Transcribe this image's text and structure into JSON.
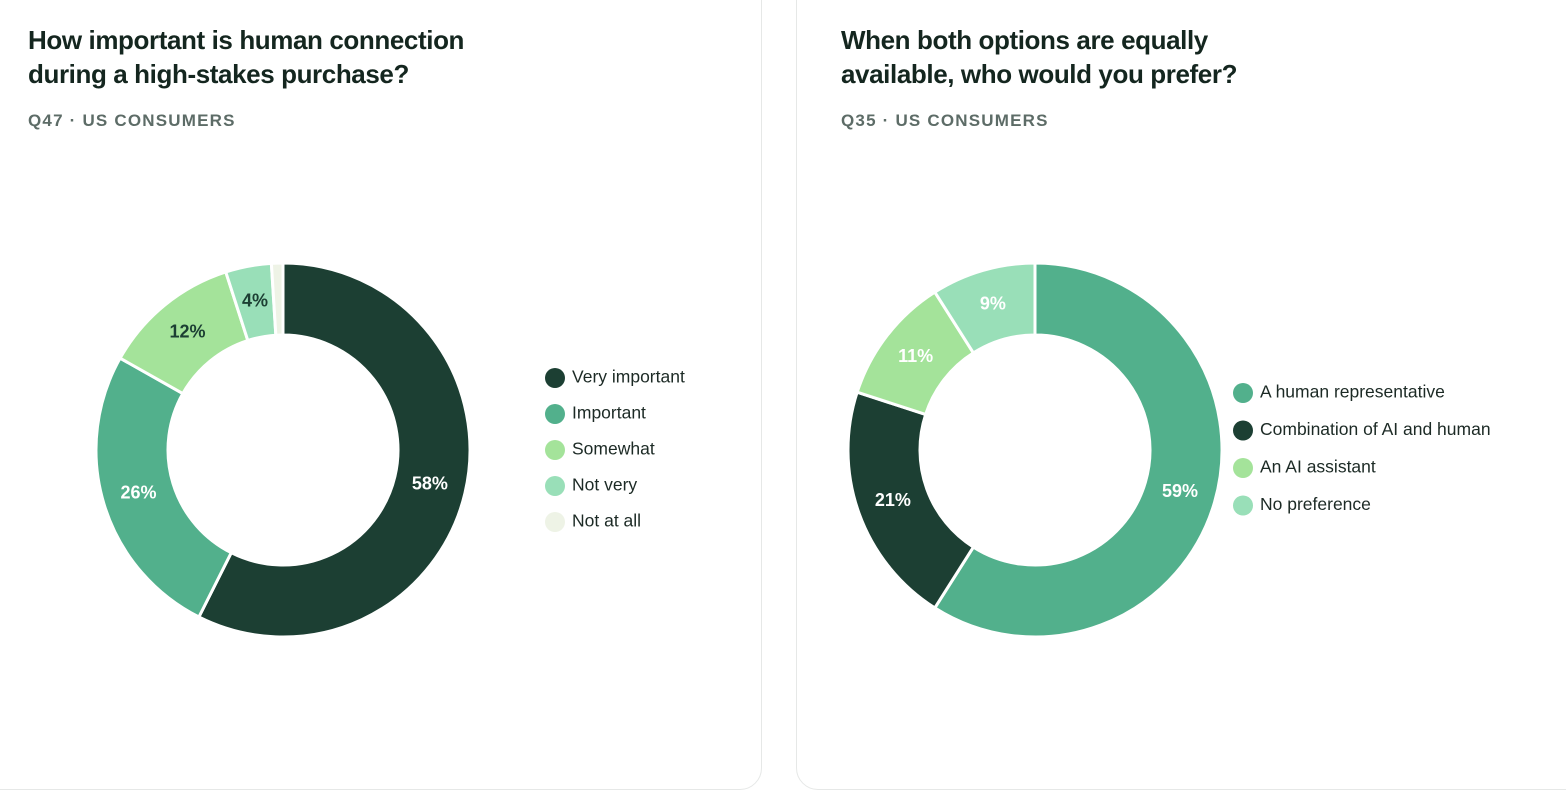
{
  "chart_data": [
    {
      "type": "donut",
      "title": "How important is human connection during a high-stakes purchase?",
      "subtitle": "Q47 · US CONSUMERS",
      "categories": [
        "Very important",
        "Important",
        "Somewhat",
        "Not very",
        "Not at all"
      ],
      "values": [
        58,
        26,
        12,
        4,
        1
      ],
      "value_labels": [
        "58%",
        "26%",
        "12%",
        "4%",
        null
      ],
      "colors": [
        "#1c3f33",
        "#52b08c",
        "#a4e39a",
        "#99dfb8",
        "#eef3e6"
      ],
      "label_colors": [
        "#ffffff",
        "#ffffff",
        "#1c3f33",
        "#1c3f33",
        "#1c3f33"
      ]
    },
    {
      "type": "donut",
      "title": "When both options are equally available, who would you prefer?",
      "subtitle": "Q35 · US CONSUMERS",
      "categories": [
        "A human representative",
        "Combination of AI and human",
        "An AI assistant",
        "No preference"
      ],
      "values": [
        59,
        21,
        11,
        9
      ],
      "value_labels": [
        "59%",
        "21%",
        "11%",
        "9%"
      ],
      "colors": [
        "#52b08c",
        "#1c3f33",
        "#a4e39a",
        "#99dfb8"
      ],
      "label_colors": [
        "#ffffff",
        "#ffffff",
        "#ffffff",
        "#ffffff"
      ]
    }
  ]
}
